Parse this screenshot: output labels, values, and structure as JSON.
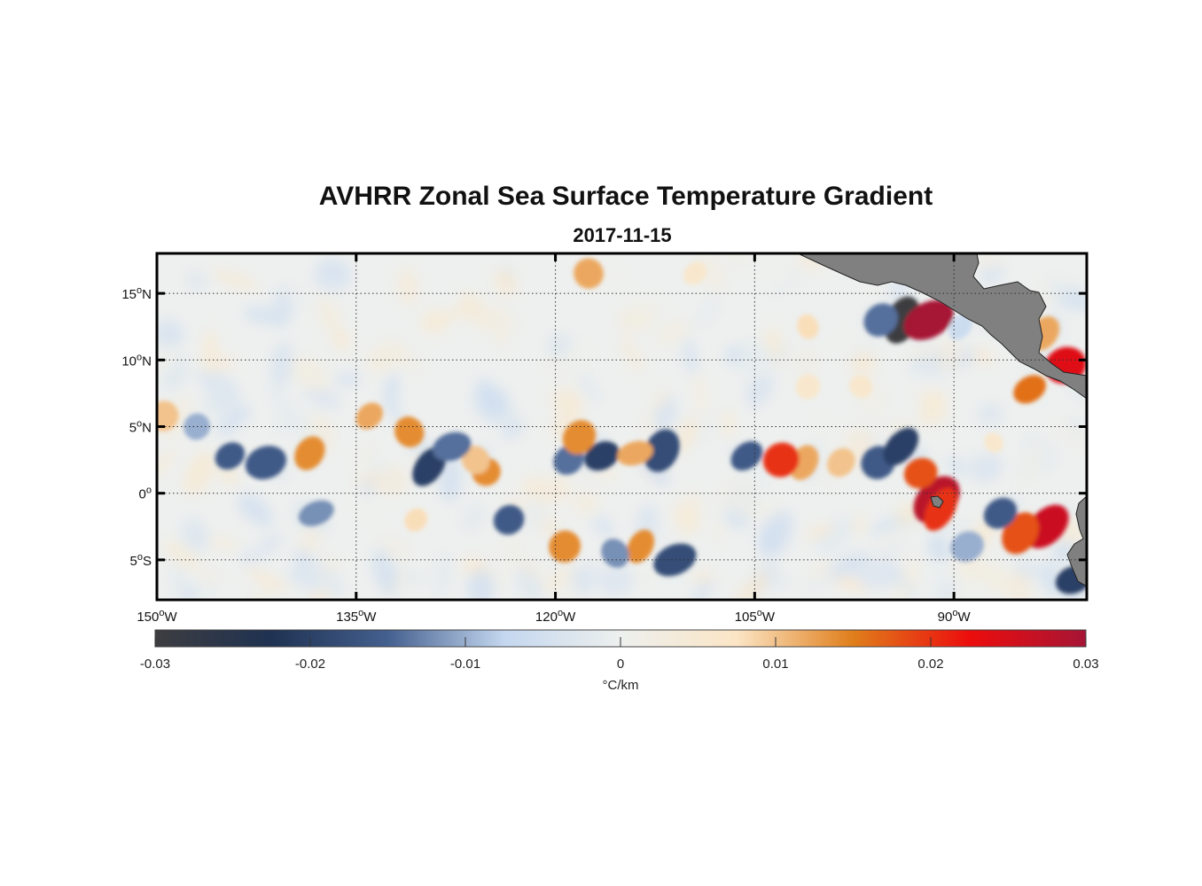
{
  "title": "AVHRR Zonal Sea Surface Temperature Gradient",
  "subtitle": "2017-11-15",
  "map": {
    "lon_range": [
      -150,
      -80
    ],
    "lat_range": [
      -8,
      18
    ],
    "lon_ticks": [
      {
        "value": -150,
        "deg": "150",
        "hemi": "W"
      },
      {
        "value": -135,
        "deg": "135",
        "hemi": "W"
      },
      {
        "value": -120,
        "deg": "120",
        "hemi": "W"
      },
      {
        "value": -105,
        "deg": "105",
        "hemi": "W"
      },
      {
        "value": -90,
        "deg": "90",
        "hemi": "W"
      }
    ],
    "lat_ticks": [
      {
        "value": 15,
        "deg": "15",
        "hemi": "N"
      },
      {
        "value": 10,
        "deg": "10",
        "hemi": "N"
      },
      {
        "value": 5,
        "deg": "5",
        "hemi": "N"
      },
      {
        "value": 0,
        "deg": "0",
        "hemi": ""
      },
      {
        "value": -5,
        "deg": "5",
        "hemi": "S"
      }
    ],
    "grid": true,
    "land_color": "#808080"
  },
  "chart_data": {
    "type": "heatmap",
    "title": "AVHRR Zonal Sea Surface Temperature Gradient",
    "subtitle": "2017-11-15",
    "value_range": [
      -0.03,
      0.03
    ],
    "units": "°C/km",
    "features": [
      {
        "lon": -93.9,
        "lat": 13.0,
        "value": -0.03
      },
      {
        "lon": -91.9,
        "lat": 13.0,
        "value": 0.03
      },
      {
        "lon": -95.5,
        "lat": 13.0,
        "value": -0.014
      },
      {
        "lon": -89.5,
        "lat": 12.5,
        "value": -0.006
      },
      {
        "lon": -101.0,
        "lat": 12.5,
        "value": 0.008
      },
      {
        "lon": -117.5,
        "lat": 16.5,
        "value": 0.012
      },
      {
        "lon": -109.5,
        "lat": 16.5,
        "value": 0.006
      },
      {
        "lon": -83.2,
        "lat": 12.0,
        "value": 0.012
      },
      {
        "lon": -81.6,
        "lat": 9.6,
        "value": 0.024
      },
      {
        "lon": -84.3,
        "lat": 7.8,
        "value": 0.016
      },
      {
        "lon": -83.0,
        "lat": -2.5,
        "value": 0.026
      },
      {
        "lon": -85.0,
        "lat": -3.0,
        "value": 0.018
      },
      {
        "lon": -81.0,
        "lat": -6.5,
        "value": -0.02
      },
      {
        "lon": -86.5,
        "lat": -1.5,
        "value": -0.016
      },
      {
        "lon": -91.3,
        "lat": -0.5,
        "value": 0.028
      },
      {
        "lon": -91.0,
        "lat": -1.2,
        "value": 0.02
      },
      {
        "lon": -92.5,
        "lat": 1.5,
        "value": 0.018
      },
      {
        "lon": -95.7,
        "lat": 2.3,
        "value": -0.016
      },
      {
        "lon": -94.0,
        "lat": 3.5,
        "value": -0.02
      },
      {
        "lon": -101.3,
        "lat": 2.3,
        "value": 0.012
      },
      {
        "lon": -103.0,
        "lat": 2.5,
        "value": 0.02
      },
      {
        "lon": -105.6,
        "lat": 2.8,
        "value": -0.016
      },
      {
        "lon": -98.5,
        "lat": 2.3,
        "value": 0.01
      },
      {
        "lon": -112.0,
        "lat": 3.2,
        "value": -0.018
      },
      {
        "lon": -116.5,
        "lat": 2.8,
        "value": -0.02
      },
      {
        "lon": -119.0,
        "lat": 2.5,
        "value": -0.014
      },
      {
        "lon": -118.2,
        "lat": 4.2,
        "value": 0.014
      },
      {
        "lon": -114.0,
        "lat": 3.0,
        "value": 0.012
      },
      {
        "lon": -125.2,
        "lat": 1.6,
        "value": 0.014
      },
      {
        "lon": -126.0,
        "lat": 2.5,
        "value": 0.01
      },
      {
        "lon": -129.5,
        "lat": 2.0,
        "value": -0.02
      },
      {
        "lon": -127.8,
        "lat": 3.5,
        "value": -0.014
      },
      {
        "lon": -131.0,
        "lat": 4.6,
        "value": 0.014
      },
      {
        "lon": -134.0,
        "lat": 5.8,
        "value": 0.012
      },
      {
        "lon": -138.5,
        "lat": 3.0,
        "value": 0.014
      },
      {
        "lon": -141.8,
        "lat": 2.3,
        "value": -0.016
      },
      {
        "lon": -144.5,
        "lat": 2.8,
        "value": -0.016
      },
      {
        "lon": -147.0,
        "lat": 5.0,
        "value": -0.01
      },
      {
        "lon": -149.5,
        "lat": 5.8,
        "value": 0.01
      },
      {
        "lon": -138.0,
        "lat": -1.5,
        "value": -0.012
      },
      {
        "lon": -123.5,
        "lat": -2.0,
        "value": -0.016
      },
      {
        "lon": -119.3,
        "lat": -4.0,
        "value": 0.014
      },
      {
        "lon": -113.6,
        "lat": -4.0,
        "value": 0.014
      },
      {
        "lon": -111.0,
        "lat": -5.0,
        "value": -0.018
      },
      {
        "lon": -115.5,
        "lat": -4.5,
        "value": -0.012
      },
      {
        "lon": -130.5,
        "lat": -2.0,
        "value": 0.008
      },
      {
        "lon": -101.0,
        "lat": 8.0,
        "value": 0.006
      },
      {
        "lon": -89.0,
        "lat": -4.0,
        "value": -0.01
      },
      {
        "lon": -87.0,
        "lat": 3.8,
        "value": 0.006
      },
      {
        "lon": -97.0,
        "lat": 8.0,
        "value": 0.006
      }
    ]
  },
  "colorbar": {
    "stops": [
      "#3d3d40",
      "#1f3252",
      "#44608f",
      "#c4d7ef",
      "#edf0ee",
      "#fbe5c5",
      "#e07e1b",
      "#ec0d0d",
      "#a61535"
    ],
    "ticks": [
      "-0.03",
      "-0.02",
      "-0.01",
      "0",
      "0.01",
      "0.02",
      "0.03"
    ],
    "label": "°C/km"
  }
}
